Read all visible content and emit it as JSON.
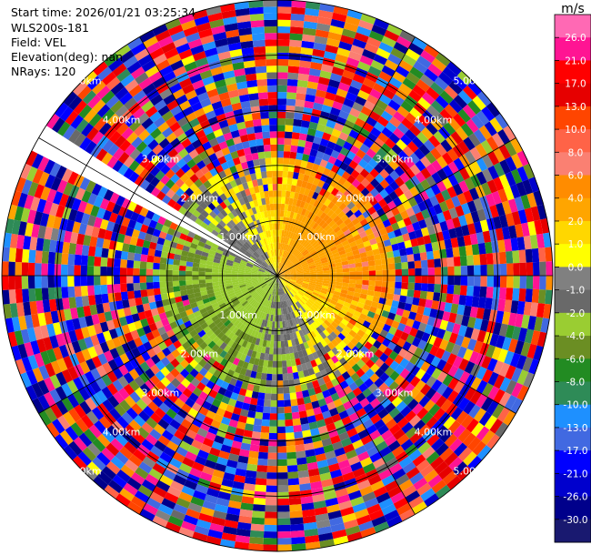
{
  "info": {
    "start_time": "Start time: 2026/01/21 03:25:34",
    "instrument": "WLS200s-181",
    "field": "Field: VEL",
    "elevation": "Elevation(deg): nan",
    "nrays": "NRays: 120"
  },
  "colorbar": {
    "unit": "m/s",
    "ticks": [
      "26.0",
      "21.0",
      "17.0",
      "13.0",
      "10.0",
      "8.0",
      "6.0",
      "4.0",
      "2.0",
      "1.0",
      "0.0",
      "-1.0",
      "-2.0",
      "-4.0",
      "-6.0",
      "-8.0",
      "-10.0",
      "-13.0",
      "-17.0",
      "-21.0",
      "-26.0",
      "-30.0"
    ],
    "colors": [
      "#ff69b4",
      "#ff1493",
      "#ff0000",
      "#e60000",
      "#ff4500",
      "#ff6347",
      "#fa8072",
      "#ff8c00",
      "#ffa500",
      "#ffd700",
      "#ffff00",
      "#808080",
      "#696969",
      "#9acd32",
      "#6b8e23",
      "#228b22",
      "#2e8b57",
      "#1e90ff",
      "#4169e1",
      "#0000ff",
      "#0000cd",
      "#00008b",
      "#191970"
    ]
  },
  "chart_data": {
    "type": "heatmap",
    "projection": "polar PPI",
    "field": "VEL",
    "units": "m/s",
    "n_rays": 120,
    "range_rings_km": [
      1,
      2,
      3,
      4,
      5
    ],
    "ring_labels": [
      "1.00km",
      "2.00km",
      "3.00km",
      "4.00km",
      "5.00km"
    ],
    "max_range_km": 5.0,
    "blanked_sector_deg": [
      297,
      303
    ],
    "regions": [
      {
        "range_km": [
          0,
          1.2
        ],
        "sector": "northeast",
        "velocity_ms": [
          1,
          4
        ]
      },
      {
        "range_km": [
          0,
          1.2
        ],
        "sector": "southwest",
        "velocity_ms": [
          -4,
          -1
        ]
      },
      {
        "range_km": [
          1.2,
          2.2
        ],
        "sector": "north",
        "velocity_ms": [
          1,
          6
        ]
      },
      {
        "range_km": [
          1.2,
          2.2
        ],
        "sector": "south",
        "velocity_ms": [
          -6,
          0
        ]
      },
      {
        "range_km": [
          2.2,
          5.0
        ],
        "sector": "all",
        "velocity_ms": [
          -30,
          26
        ],
        "note": "noise"
      }
    ]
  }
}
